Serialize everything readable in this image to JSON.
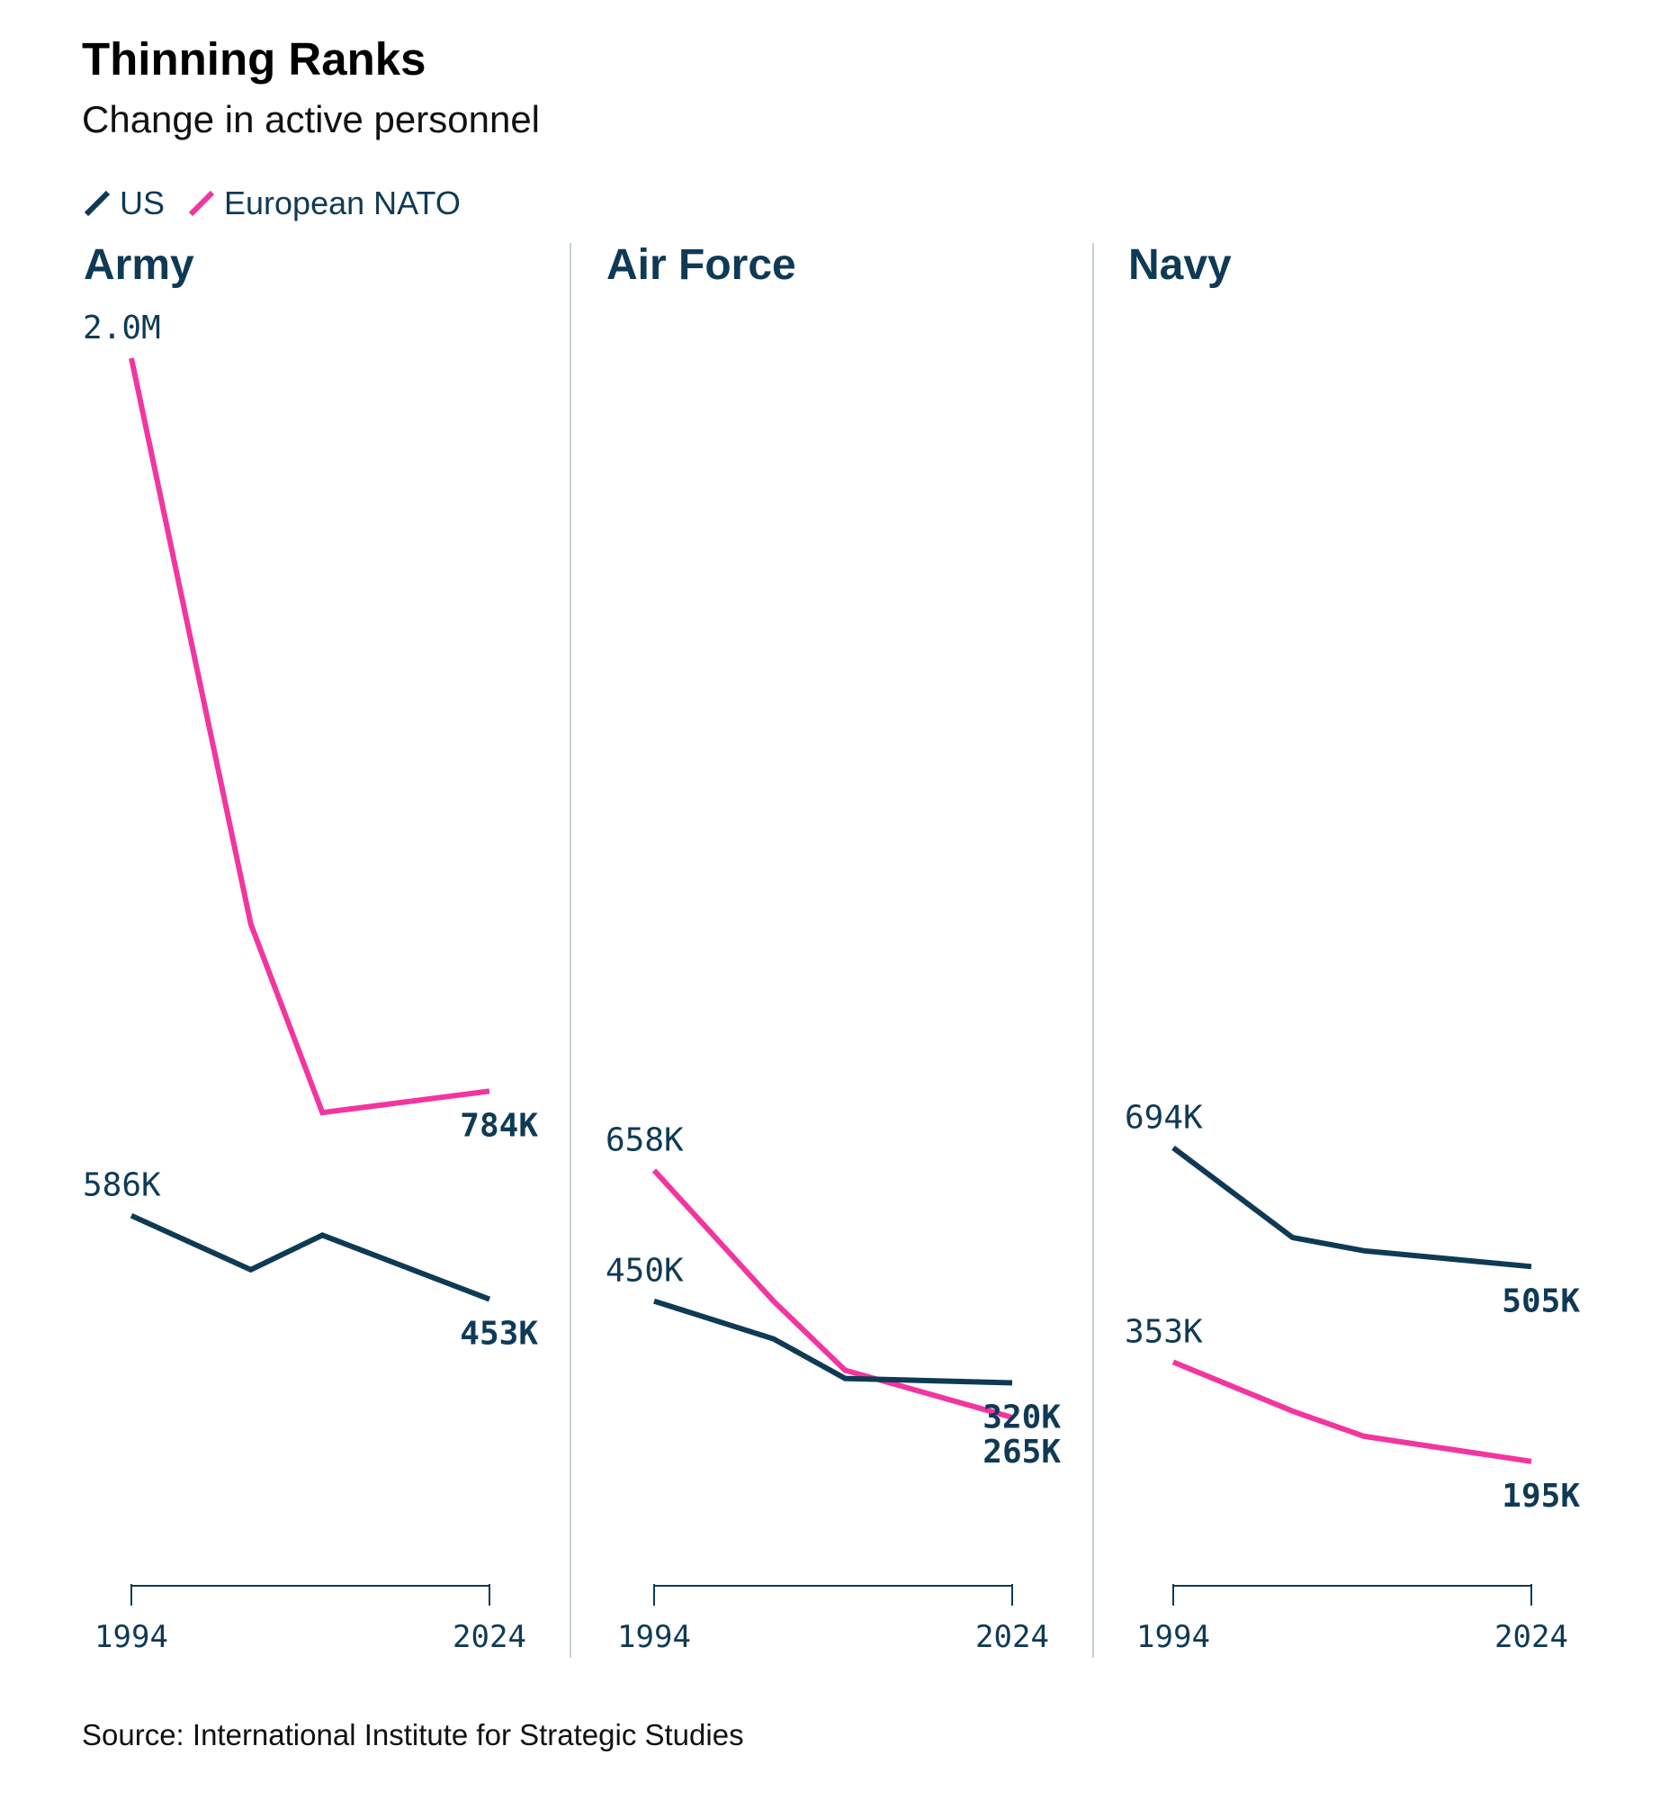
{
  "title": "Thinning Ranks",
  "subtitle": "Change in active personnel",
  "source": "Source: International Institute for Strategic Studies",
  "legend": [
    {
      "label": "US",
      "color": "#0f3a55"
    },
    {
      "label": "European NATO",
      "color": "#f2359f"
    }
  ],
  "chart_data": [
    {
      "type": "line",
      "title": "Army",
      "x_ticks": [
        "1994",
        "2024"
      ],
      "xlim": [
        1994,
        2024
      ],
      "series": [
        {
          "name": "European NATO",
          "color": "#f2359f",
          "x": [
            1994,
            2004,
            2010,
            2024
          ],
          "y": [
            1950000,
            1050000,
            750000,
            784000
          ],
          "start_label": "2.0M",
          "end_label": "784K"
        },
        {
          "name": "US",
          "color": "#0f3a55",
          "x": [
            1994,
            2004,
            2010,
            2024
          ],
          "y": [
            586000,
            500000,
            555000,
            453000
          ],
          "start_label": "586K",
          "end_label": "453K"
        }
      ]
    },
    {
      "type": "line",
      "title": "Air Force",
      "x_ticks": [
        "1994",
        "2024"
      ],
      "xlim": [
        1994,
        2024
      ],
      "series": [
        {
          "name": "European NATO",
          "color": "#f2359f",
          "x": [
            1994,
            2004,
            2010,
            2024
          ],
          "y": [
            658000,
            450000,
            340000,
            265000
          ],
          "start_label": "658K",
          "end_label": "265K"
        },
        {
          "name": "US",
          "color": "#0f3a55",
          "x": [
            1994,
            2004,
            2010,
            2024
          ],
          "y": [
            450000,
            390000,
            327000,
            320000
          ],
          "start_label": "450K",
          "end_label": "320K"
        }
      ]
    },
    {
      "type": "line",
      "title": "Navy",
      "x_ticks": [
        "1994",
        "2024"
      ],
      "xlim": [
        1994,
        2024
      ],
      "series": [
        {
          "name": "US",
          "color": "#0f3a55",
          "x": [
            1994,
            2004,
            2010,
            2024
          ],
          "y": [
            694000,
            551000,
            530000,
            505000
          ],
          "start_label": "694K",
          "end_label": "505K"
        },
        {
          "name": "European NATO",
          "color": "#f2359f",
          "x": [
            1994,
            2004,
            2010,
            2024
          ],
          "y": [
            353000,
            275000,
            235000,
            195000
          ],
          "start_label": "353K",
          "end_label": "195K"
        }
      ]
    }
  ]
}
